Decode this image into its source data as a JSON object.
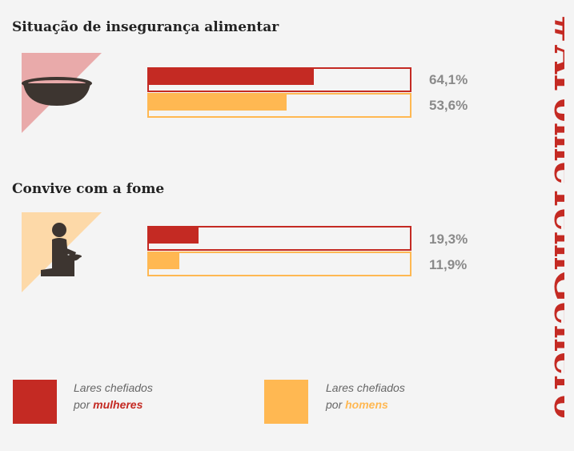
{
  "colors": {
    "women": "#c42a23",
    "men": "#ffb852",
    "icon_bg_1": "#e9aaaa",
    "icon_bg_2": "#fdd9a8",
    "icon_fg": "#3d3530"
  },
  "chart_data": [
    {
      "type": "bar",
      "title": "Situação de insegurança alimentar",
      "icon": "bowl-icon",
      "xlim": [
        0,
        100
      ],
      "series": [
        {
          "name": "Lares chefiados por mulheres",
          "value": 64.1,
          "label": "64,1%"
        },
        {
          "name": "Lares chefiados por homens",
          "value": 53.6,
          "label": "53,6%"
        }
      ]
    },
    {
      "type": "bar",
      "title": "Convive com a fome",
      "icon": "kneeling-person-icon",
      "xlim": [
        0,
        100
      ],
      "series": [
        {
          "name": "Lares chefiados por mulheres",
          "value": 19.3,
          "label": "19,3%"
        },
        {
          "name": "Lares chefiados por homens",
          "value": 11.9,
          "label": "11,9%"
        }
      ]
    }
  ],
  "legend": {
    "women": {
      "line1": "Lares chefiados",
      "prefix": "por ",
      "highlight": "mulheres"
    },
    "men": {
      "line1": "Lares chefiados",
      "prefix": "por ",
      "highlight": "homens"
    }
  },
  "hashtag": {
    "part1": "#AFomeTem",
    "part2": "Gênero"
  }
}
